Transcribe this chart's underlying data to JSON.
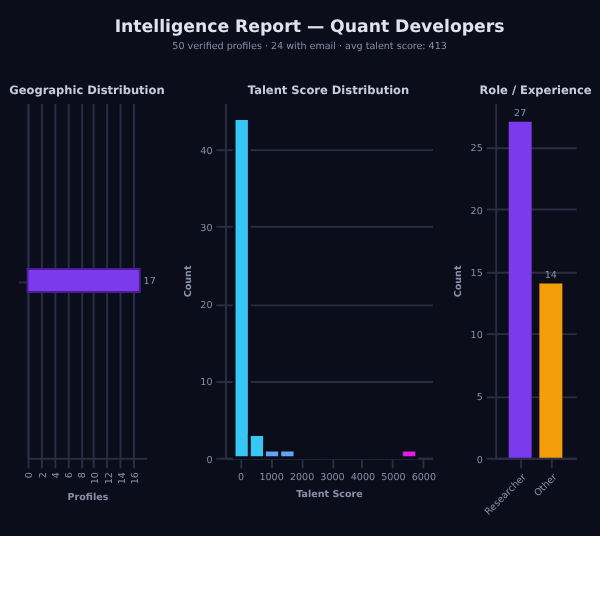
{
  "chart_data": [
    {
      "type": "other",
      "title": "Intelligence Report — Quant Developers",
      "subtitle": "50 verified profiles  ·  24 with email  ·  avg talent score: 413"
    },
    {
      "type": "bar",
      "title": "Geographic Distribution",
      "orientation": "horizontal",
      "categories": [
        null
      ],
      "values": [
        17
      ],
      "colors": [
        "#7c3aed"
      ],
      "xlabel": "Profiles",
      "xlim": [
        0,
        18
      ],
      "xticks": [
        0,
        2,
        4,
        6,
        8,
        10,
        12,
        14,
        16
      ],
      "data_labels": true,
      "grid": "x"
    },
    {
      "type": "histogram",
      "title": "Talent Score Distribution",
      "xlabel": "Talent Score",
      "ylabel": "Count",
      "bins": [
        -200,
        300,
        800,
        1300,
        1800,
        2300,
        2800,
        3300,
        3800,
        4300,
        4800,
        5300,
        5800
      ],
      "values": [
        44,
        3,
        1,
        1,
        0,
        0,
        0,
        0,
        0,
        0,
        0,
        1
      ],
      "colors": [
        "#38c6f4",
        "#38c6f4",
        "#60a5fa",
        "#60a5fa",
        "#60a5fa",
        "#60a5fa",
        "#60a5fa",
        "#60a5fa",
        "#60a5fa",
        "#60a5fa",
        "#60a5fa",
        "#e11de8"
      ],
      "xlim": [
        -500,
        6300
      ],
      "xticks": [
        0,
        1000,
        2000,
        3000,
        4000,
        5000,
        6000
      ],
      "ylim": [
        0,
        46
      ],
      "yticks": [
        0,
        10,
        20,
        30,
        40
      ],
      "grid": "y"
    },
    {
      "type": "bar",
      "title": "Role / Experience",
      "ylabel": "Count",
      "categories": [
        "Researcher",
        "Other"
      ],
      "values": [
        27,
        14
      ],
      "colors": [
        "#7c3aed",
        "#f59e0b"
      ],
      "ylim": [
        0,
        28.5
      ],
      "yticks": [
        0,
        5,
        10,
        15,
        20,
        25
      ],
      "data_labels": true,
      "grid": "y"
    }
  ]
}
